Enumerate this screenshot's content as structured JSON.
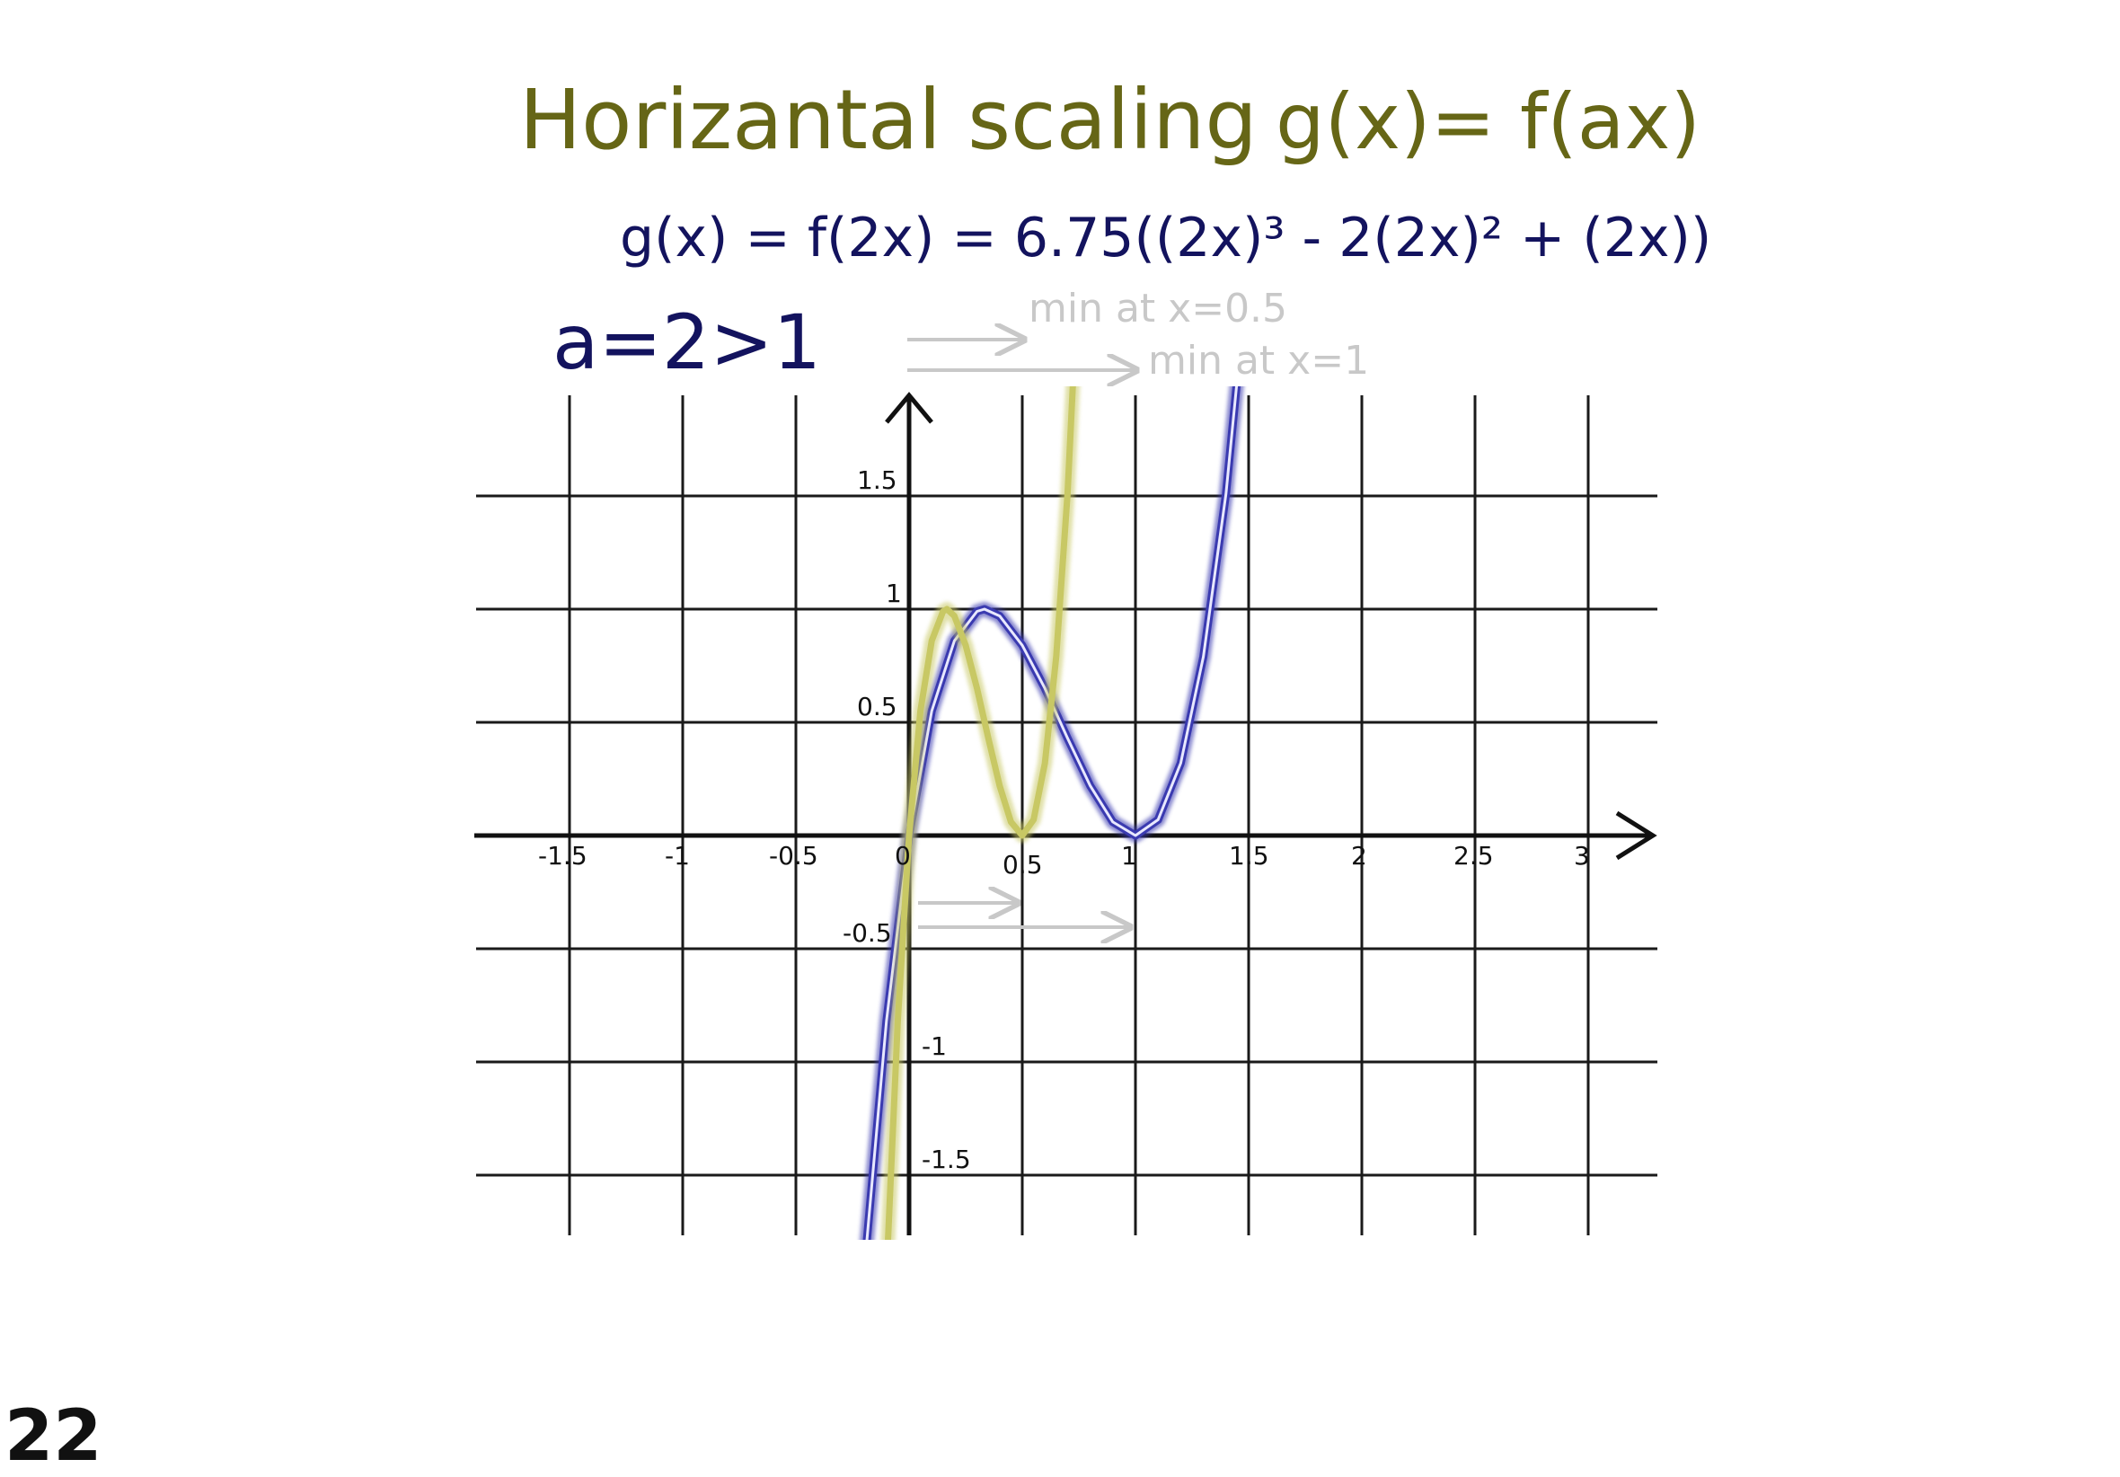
{
  "page_number": "22",
  "colors": {
    "title": "#666616",
    "formula": "#13135e",
    "annotation": "#c8c8c8",
    "grid": "#1a1a1a",
    "axes": "#111111",
    "original_curve": "#c8c864",
    "scaled_curve": "#3a3ab0",
    "scaled_curve_core": "#e8e8ff"
  },
  "heading": {
    "title": "Horizantal scaling",
    "general_formula": "g(x)= f(ax)"
  },
  "formula": {
    "text": "g(x) = f(2x) = 6.75((2x)³ - 2(2x)² + (2x))"
  },
  "condition": {
    "text": "a=2>1"
  },
  "annotations": {
    "min_scaled": "min at x=0.5",
    "min_original": "min at x=1"
  },
  "chart_data": {
    "type": "line",
    "xlim": [
      -1.9,
      3.3
    ],
    "ylim": [
      -1.75,
      1.95
    ],
    "grid": true,
    "x_ticks": [
      -1.5,
      -1,
      -0.5,
      0,
      0.5,
      1,
      1.5,
      2,
      2.5,
      3
    ],
    "x_tick_labels": [
      "-1.5",
      "-1",
      "-0.5",
      "0",
      "0.5",
      "1",
      "1.5",
      "2",
      "2.5",
      "3"
    ],
    "y_ticks": [
      1.5,
      1,
      0.5,
      -0.5,
      -1,
      -1.5
    ],
    "y_tick_labels": [
      "1.5",
      "1",
      "0.5",
      "-0.5",
      "-1",
      "-1.5"
    ],
    "series": [
      {
        "key": "f",
        "x": [
          -0.2,
          -0.1,
          0,
          0.1,
          0.2,
          0.3,
          0.333,
          0.4,
          0.5,
          0.6,
          0.7,
          0.8,
          0.9,
          1.0,
          1.1,
          1.2,
          1.3,
          1.4,
          1.5
        ],
        "y": [
          -1.94,
          -0.82,
          0,
          0.55,
          0.86,
          0.99,
          1.0,
          0.97,
          0.84,
          0.65,
          0.43,
          0.22,
          0.06,
          0,
          0.07,
          0.32,
          0.79,
          1.51,
          2.53
        ]
      },
      {
        "key": "g",
        "x": [
          -0.1,
          -0.05,
          0,
          0.05,
          0.1,
          0.15,
          0.167,
          0.2,
          0.25,
          0.3,
          0.35,
          0.4,
          0.45,
          0.5,
          0.55,
          0.6,
          0.65,
          0.7,
          0.75
        ],
        "y": [
          -1.94,
          -0.82,
          0,
          0.55,
          0.86,
          0.99,
          1.0,
          0.97,
          0.84,
          0.65,
          0.43,
          0.22,
          0.06,
          0,
          0.07,
          0.32,
          0.79,
          1.51,
          2.53
        ]
      }
    ]
  }
}
